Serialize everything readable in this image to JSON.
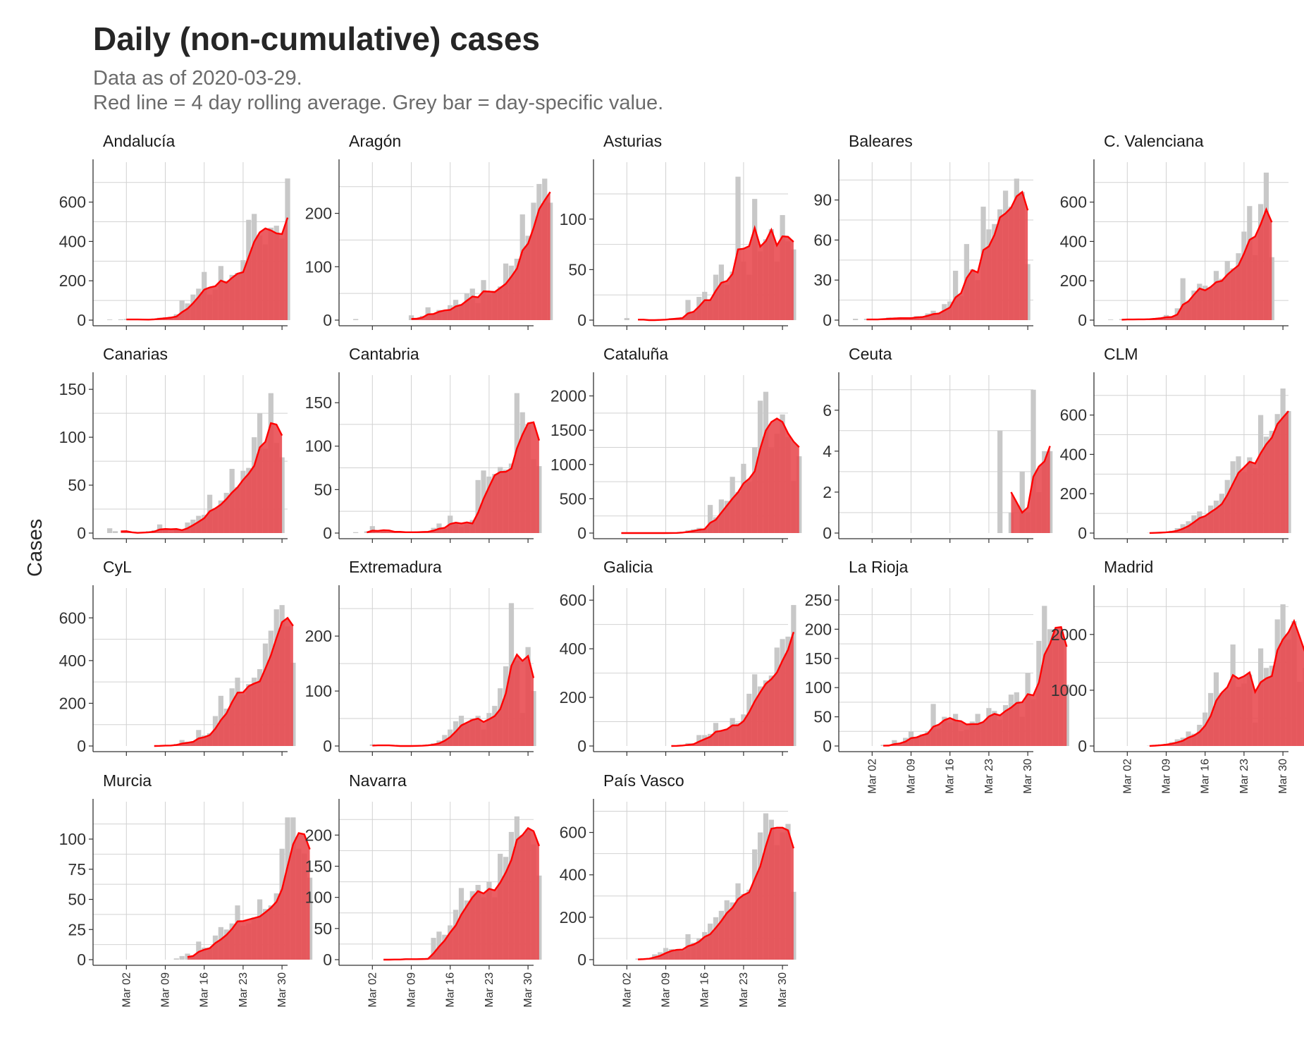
{
  "title": "Daily (non-cumulative) cases",
  "subtitle_line1": "Data as of 2020-03-29.",
  "subtitle_line2": "Red line = 4 day rolling average. Grey bar = day-specific value.",
  "y_axis_label": "Cases",
  "colors": {
    "bar": "#c8c8c8",
    "line": "#ff0000",
    "fill": "#e8484d",
    "grid": "#d2d2d2",
    "axis": "#333333",
    "text": "#333333"
  },
  "chart_data": [
    {
      "type": "bar",
      "panel": "Andalucía",
      "ylim": [
        0,
        760
      ],
      "yticks": [
        0,
        200,
        400,
        600
      ],
      "day_start": -3,
      "values": [
        0,
        3,
        0,
        4,
        6,
        3,
        0,
        2,
        5,
        8,
        12,
        14,
        17,
        30,
        100,
        85,
        130,
        160,
        245,
        130,
        155,
        275,
        200,
        230,
        240,
        305,
        510,
        540,
        430,
        385,
        470,
        480,
        415,
        720
      ],
      "rolling_start_index": 4
    },
    {
      "type": "bar",
      "panel": "Aragón",
      "ylim": [
        0,
        280
      ],
      "yticks": [
        0,
        100,
        200
      ],
      "day_start": -3,
      "values": [
        0,
        2,
        0,
        0,
        0,
        0,
        0,
        0,
        0,
        0,
        0,
        9,
        2,
        8,
        24,
        12,
        19,
        18,
        28,
        38,
        30,
        50,
        59,
        32,
        75,
        48,
        55,
        63,
        106,
        102,
        115,
        198,
        158,
        220,
        255,
        265,
        220
      ],
      "rolling_start_index": 11
    },
    {
      "type": "bar",
      "panel": "Asturias",
      "ylim": [
        0,
        148
      ],
      "yticks": [
        0,
        50,
        100
      ],
      "day_start": -3,
      "values": [
        0,
        0,
        0,
        0,
        2,
        0,
        0,
        0,
        0,
        0,
        1,
        1,
        2,
        2,
        3,
        20,
        8,
        23,
        28,
        20,
        45,
        55,
        35,
        48,
        142,
        58,
        45,
        120,
        68,
        80,
        90,
        58,
        104,
        78,
        70
      ],
      "rolling_start_index": 6
    },
    {
      "type": "bar",
      "panel": "Baleares",
      "ylim": [
        0,
        112
      ],
      "yticks": [
        0,
        30,
        60,
        90
      ],
      "day_start": -3,
      "values": [
        0,
        1,
        0,
        1,
        0,
        1,
        1,
        2,
        1,
        2,
        1,
        2,
        3,
        3,
        5,
        7,
        5,
        12,
        14,
        37,
        18,
        57,
        38,
        30,
        85,
        68,
        72,
        83,
        97,
        85,
        106,
        96,
        42
      ],
      "rolling_start_index": 3
    },
    {
      "type": "bar",
      "panel": "C. Valenciana",
      "ylim": [
        0,
        760
      ],
      "yticks": [
        0,
        200,
        400,
        600
      ],
      "day_start": -3,
      "values": [
        0,
        3,
        0,
        5,
        5,
        3,
        2,
        5,
        9,
        11,
        13,
        26,
        14,
        60,
        213,
        95,
        150,
        185,
        175,
        163,
        250,
        210,
        300,
        263,
        340,
        450,
        580,
        330,
        590,
        750,
        320
      ],
      "rolling_start_index": 3
    },
    {
      "type": "bar",
      "panel": "Canarias",
      "ylim": [
        0,
        156
      ],
      "yticks": [
        0,
        50,
        100,
        150
      ],
      "day_start": -3,
      "values": [
        0,
        5,
        2,
        0,
        1,
        0,
        0,
        1,
        2,
        3,
        9,
        3,
        1,
        4,
        4,
        11,
        14,
        18,
        19,
        40,
        26,
        34,
        42,
        67,
        48,
        65,
        68,
        100,
        125,
        88,
        146,
        94,
        79
      ],
      "rolling_start_index": 3
    },
    {
      "type": "bar",
      "panel": "Cantabria",
      "ylim": [
        0,
        172
      ],
      "yticks": [
        0,
        50,
        100,
        150
      ],
      "day_start": -3,
      "values": [
        0,
        1,
        0,
        2,
        8,
        0,
        3,
        1,
        2,
        0,
        1,
        1,
        2,
        1,
        2,
        6,
        11,
        5,
        20,
        12,
        7,
        10,
        15,
        61,
        72,
        65,
        68,
        76,
        73,
        80,
        161,
        139,
        125,
        85,
        77
      ],
      "rolling_start_index": 3
    },
    {
      "type": "bar",
      "panel": "Cataluña",
      "ylim": [
        0,
        2180
      ],
      "yticks": [
        0,
        500,
        1000,
        1500,
        2000
      ],
      "day_start": -3,
      "values": [
        0,
        0,
        0,
        0,
        0,
        0,
        0,
        0,
        0,
        0,
        0,
        0,
        3,
        5,
        20,
        40,
        55,
        75,
        60,
        410,
        230,
        490,
        470,
        820,
        600,
        1010,
        740,
        1250,
        1930,
        2060,
        1240,
        1450,
        1730,
        1400,
        760,
        1120
      ],
      "rolling_start_index": 3
    },
    {
      "type": "bar",
      "panel": "Ceuta",
      "ylim": [
        0,
        7.3
      ],
      "yticks": [
        0,
        2,
        4,
        6
      ],
      "day_start": -3,
      "values": [
        null,
        null,
        null,
        null,
        null,
        null,
        null,
        null,
        null,
        null,
        null,
        null,
        null,
        null,
        null,
        null,
        null,
        null,
        null,
        null,
        null,
        null,
        null,
        null,
        null,
        null,
        null,
        5,
        0,
        1,
        0,
        3,
        1,
        7,
        2,
        4,
        4
      ],
      "rolling_start_index": 29
    },
    {
      "type": "bar",
      "panel": "CLM",
      "ylim": [
        0,
        760
      ],
      "yticks": [
        0,
        200,
        400,
        600
      ],
      "day_start": -3,
      "values": [
        0,
        0,
        0,
        0,
        0,
        0,
        0,
        0,
        1,
        3,
        5,
        6,
        12,
        25,
        45,
        60,
        90,
        110,
        85,
        140,
        165,
        200,
        270,
        365,
        390,
        310,
        385,
        330,
        600,
        490,
        520,
        605,
        735,
        620
      ],
      "rolling_start_index": 8
    },
    {
      "type": "bar",
      "panel": "CyL",
      "ylim": [
        0,
        700
      ],
      "yticks": [
        0,
        200,
        400,
        600
      ],
      "day_start": -3,
      "values": [
        0,
        0,
        0,
        0,
        0,
        0,
        0,
        0,
        0,
        0,
        2,
        5,
        2,
        10,
        28,
        20,
        20,
        75,
        50,
        60,
        140,
        235,
        175,
        270,
        320,
        240,
        290,
        320,
        360,
        480,
        540,
        640,
        660,
        560,
        390
      ],
      "rolling_start_index": 9
    },
    {
      "type": "bar",
      "panel": "Extremadura",
      "ylim": [
        0,
        272
      ],
      "yticks": [
        0,
        100,
        200
      ],
      "day_start": -3,
      "values": [
        0,
        0,
        0,
        0,
        3,
        2,
        0,
        0,
        0,
        0,
        0,
        0,
        1,
        1,
        3,
        5,
        10,
        20,
        30,
        45,
        55,
        40,
        50,
        55,
        30,
        60,
        73,
        105,
        145,
        260,
        155,
        60,
        180,
        100
      ],
      "rolling_start_index": 4
    },
    {
      "type": "bar",
      "panel": "Galicia",
      "ylim": [
        0,
        615
      ],
      "yticks": [
        0,
        200,
        400,
        600
      ],
      "day_start": -3,
      "values": [
        null,
        null,
        null,
        null,
        null,
        null,
        null,
        null,
        null,
        null,
        null,
        null,
        0,
        1,
        5,
        12,
        11,
        45,
        45,
        50,
        95,
        60,
        70,
        115,
        95,
        130,
        215,
        295,
        245,
        270,
        290,
        405,
        440,
        450,
        580
      ],
      "rolling_start_index": 12
    },
    {
      "type": "bar",
      "panel": "La Rioja",
      "ylim": [
        0,
        256
      ],
      "yticks": [
        0,
        50,
        100,
        150,
        200,
        250
      ],
      "day_start": -3,
      "values": [
        0,
        0,
        0,
        0,
        0,
        0,
        2,
        1,
        10,
        5,
        14,
        25,
        15,
        20,
        25,
        72,
        30,
        50,
        40,
        55,
        25,
        28,
        42,
        55,
        40,
        65,
        60,
        45,
        70,
        88,
        92,
        50,
        125,
        80,
        180,
        240,
        200,
        190,
        185,
        105
      ],
      "rolling_start_index": 6
    },
    {
      "type": "bar",
      "panel": "Madrid",
      "ylim": [
        0,
        2680
      ],
      "yticks": [
        0,
        1000,
        2000
      ],
      "day_start": -3,
      "values": [
        0,
        0,
        0,
        0,
        0,
        0,
        0,
        0,
        5,
        20,
        30,
        40,
        70,
        120,
        150,
        260,
        220,
        380,
        600,
        950,
        1320,
        950,
        1000,
        1820,
        1060,
        1120,
        1280,
        420,
        1750,
        1400,
        1440,
        2270,
        2540,
        1910,
        2240,
        1150,
        1400
      ],
      "rolling_start_index": 8
    },
    {
      "type": "bar",
      "panel": "Murcia",
      "ylim": [
        0,
        124
      ],
      "yticks": [
        0,
        25,
        50,
        75,
        100
      ],
      "day_start": -3,
      "values": [
        null,
        null,
        null,
        null,
        null,
        null,
        null,
        null,
        null,
        null,
        null,
        null,
        0,
        1,
        3,
        5,
        3,
        15,
        10,
        10,
        20,
        27,
        25,
        30,
        45,
        28,
        30,
        35,
        50,
        42,
        45,
        55,
        92,
        118,
        118,
        92,
        88,
        68
      ],
      "rolling_start_index": 15
    },
    {
      "type": "bar",
      "panel": "Navarra",
      "ylim": [
        0,
        240
      ],
      "yticks": [
        0,
        50,
        100,
        150,
        200
      ],
      "day_start": -3,
      "values": [
        0,
        0,
        0,
        0,
        0,
        0,
        0,
        0,
        1,
        0,
        2,
        0,
        1,
        1,
        3,
        35,
        45,
        40,
        55,
        80,
        115,
        95,
        110,
        120,
        100,
        125,
        100,
        170,
        165,
        205,
        230,
        200,
        210,
        185,
        135
      ],
      "rolling_start_index": 6
    },
    {
      "type": "bar",
      "panel": "País Vasco",
      "ylim": [
        0,
        705
      ],
      "yticks": [
        0,
        200,
        400,
        600
      ],
      "day_start": -3,
      "values": [
        0,
        0,
        0,
        0,
        0,
        0,
        5,
        5,
        8,
        25,
        35,
        55,
        50,
        45,
        40,
        120,
        80,
        100,
        130,
        170,
        200,
        230,
        280,
        270,
        360,
        310,
        330,
        520,
        600,
        690,
        660,
        540,
        600,
        640,
        320
      ],
      "rolling_start_index": 6
    }
  ],
  "x_tick_labels": [
    "Mar 02",
    "Mar 09",
    "Mar 16",
    "Mar 23",
    "Mar 30"
  ]
}
